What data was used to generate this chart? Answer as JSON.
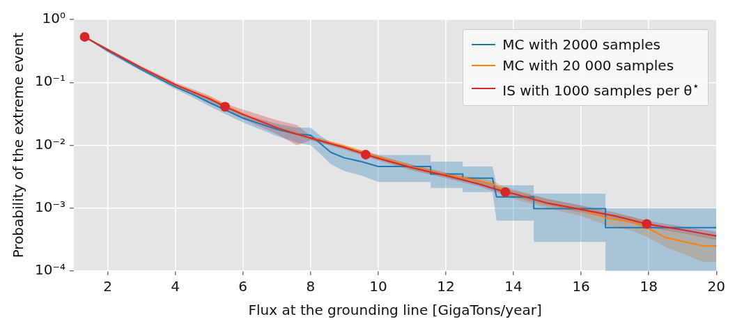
{
  "chart_data": {
    "type": "line",
    "xlabel": "Flux at the grounding line [GigaTons/year]",
    "ylabel": "Probability of the extreme event",
    "log": "y",
    "grid": true,
    "legend": "top right",
    "xlim": [
      1,
      20
    ],
    "xticks": [
      2,
      4,
      6,
      8,
      10,
      12,
      14,
      16,
      18,
      20
    ],
    "ylim": [
      0.0001,
      1
    ],
    "yticks": [
      {
        "value": 0.0001,
        "label": "10⁻⁴"
      },
      {
        "value": 0.001,
        "label": "10⁻³"
      },
      {
        "value": 0.01,
        "label": "10⁻²"
      },
      {
        "value": 0.1,
        "label": "10⁻¹"
      },
      {
        "value": 1,
        "label": "10⁰"
      }
    ],
    "series": [
      {
        "name": "MC with 2000 samples",
        "color": "#1f77b4",
        "x": [
          1.32,
          2,
          3,
          4,
          4.5,
          5,
          5.5,
          6,
          6.5,
          7,
          7.6,
          8,
          8.3,
          8.6,
          9,
          9.5,
          10,
          11.55,
          11.55,
          12.5,
          12.5,
          13.38,
          13.5,
          14.6,
          14.6,
          16.72,
          16.72,
          20
        ],
        "values": [
          0.53,
          0.32,
          0.16,
          0.085,
          0.065,
          0.048,
          0.036,
          0.027,
          0.022,
          0.018,
          0.015,
          0.0145,
          0.0105,
          0.0077,
          0.0063,
          0.0055,
          0.0046,
          0.0046,
          0.0035,
          0.0035,
          0.003,
          0.003,
          0.0015,
          0.0015,
          0.00098,
          0.00098,
          0.00049,
          0.00049
        ],
        "lower": [
          0.53,
          0.3,
          0.15,
          0.078,
          0.058,
          0.042,
          0.031,
          0.023,
          0.018,
          0.014,
          0.011,
          0.01,
          0.0072,
          0.005,
          0.0039,
          0.0033,
          0.0026,
          0.0026,
          0.0021,
          0.0021,
          0.0018,
          0.0018,
          0.00063,
          0.00063,
          0.00029,
          0.00029,
          0.0001,
          0.0001
        ],
        "upper": [
          0.53,
          0.34,
          0.17,
          0.092,
          0.072,
          0.054,
          0.041,
          0.031,
          0.026,
          0.022,
          0.019,
          0.019,
          0.014,
          0.011,
          0.0093,
          0.0082,
          0.007,
          0.007,
          0.0055,
          0.0055,
          0.0046,
          0.0046,
          0.0023,
          0.0023,
          0.0017,
          0.0017,
          0.001,
          0.001
        ]
      },
      {
        "name": "MC with 20 000 samples",
        "color": "#ff7f0e",
        "x": [
          1.32,
          2,
          3,
          4,
          5,
          6,
          7,
          8,
          9,
          10,
          11,
          12,
          13,
          13.4,
          13.7,
          14,
          15,
          16,
          16.8,
          17.5,
          17.94,
          18.5,
          19.6,
          20
        ],
        "values": [
          0.53,
          0.33,
          0.17,
          0.09,
          0.056,
          0.031,
          0.019,
          0.013,
          0.0095,
          0.0065,
          0.0045,
          0.0034,
          0.0027,
          0.0024,
          0.0019,
          0.0017,
          0.0012,
          0.00095,
          0.00068,
          0.0006,
          0.00049,
          0.00034,
          0.00025,
          0.00025
        ],
        "lower": [
          0.53,
          0.31,
          0.16,
          0.085,
          0.052,
          0.029,
          0.0175,
          0.012,
          0.0088,
          0.006,
          0.0041,
          0.0031,
          0.0024,
          0.0021,
          0.0016,
          0.0014,
          0.001,
          0.00075,
          0.00052,
          0.00044,
          0.00035,
          0.00024,
          0.00014,
          0.00014
        ],
        "upper": [
          0.53,
          0.35,
          0.18,
          0.095,
          0.06,
          0.033,
          0.021,
          0.014,
          0.0102,
          0.007,
          0.0049,
          0.0037,
          0.003,
          0.0027,
          0.0022,
          0.002,
          0.0014,
          0.0011,
          0.00082,
          0.00073,
          0.00062,
          0.00047,
          0.00037,
          0.00037
        ]
      },
      {
        "name": "IS with 1000 samples per θ$^{⋆}$",
        "color": "#d62728",
        "x": [
          1.32,
          2,
          3,
          4,
          5,
          5.47,
          6,
          7,
          7.6,
          8,
          9,
          9.63,
          10,
          11,
          12,
          13,
          13.76,
          14,
          15,
          16,
          17,
          17.94,
          19,
          20
        ],
        "values": [
          0.53,
          0.33,
          0.17,
          0.092,
          0.055,
          0.041,
          0.031,
          0.019,
          0.015,
          0.013,
          0.0092,
          0.0071,
          0.0062,
          0.0044,
          0.0033,
          0.0024,
          0.0018,
          0.0017,
          0.0012,
          0.00095,
          0.00075,
          0.00056,
          0.00045,
          0.00036
        ],
        "lower": [
          0.53,
          0.31,
          0.16,
          0.085,
          0.05,
          0.037,
          0.026,
          0.015,
          0.01,
          0.012,
          0.0085,
          0.0066,
          0.0057,
          0.004,
          0.003,
          0.0022,
          0.0016,
          0.0015,
          0.0011,
          0.00085,
          0.00067,
          0.0005,
          0.0004,
          0.00031
        ],
        "upper": [
          0.53,
          0.35,
          0.18,
          0.1,
          0.062,
          0.046,
          0.037,
          0.025,
          0.021,
          0.014,
          0.01,
          0.0077,
          0.0068,
          0.0049,
          0.0036,
          0.0027,
          0.002,
          0.0019,
          0.0014,
          0.0011,
          0.00085,
          0.00063,
          0.00051,
          0.00042
        ]
      },
      {
        "type": "scatter",
        "marker": "circle",
        "color": "#d62728",
        "x": [
          1.32,
          5.47,
          9.63,
          13.76,
          17.94
        ],
        "values": [
          0.53,
          0.041,
          0.0071,
          0.0018,
          0.00056
        ]
      }
    ]
  }
}
